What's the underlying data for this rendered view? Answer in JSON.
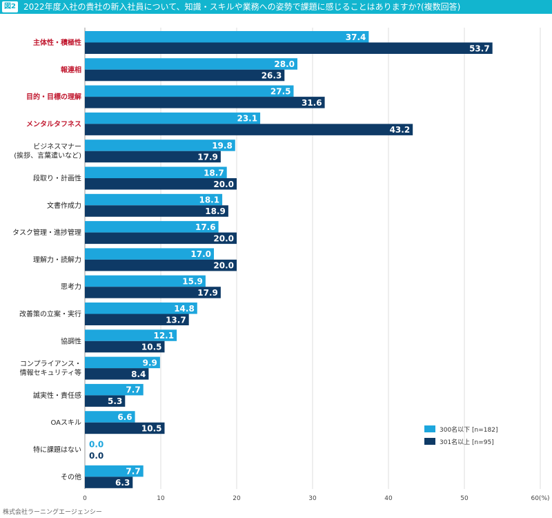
{
  "header": {
    "figure_label": "図2",
    "title": "2022年度入社の貴社の新入社員について、知識・スキルや業務への姿勢で課題に感じることはありますか?(複数回答)"
  },
  "source": "株式会社ラーニングエージェンシー",
  "colors": {
    "title_bar": "#12b5cf",
    "series_light": "#1da6dd",
    "series_dark": "#0e3a66",
    "highlight_label": "#c0172e",
    "normal_label": "#222222"
  },
  "chart_data": {
    "type": "bar",
    "orientation": "horizontal",
    "categories": [
      "主体性・積極性",
      "報連相",
      "目的・目標の理解",
      "メンタルタフネス",
      "ビジネスマナー\n(挨拶、言葉遣いなど)",
      "段取り・計画性",
      "文書作成力",
      "タスク管理・進捗管理",
      "理解力・読解力",
      "思考力",
      "改善策の立案・実行",
      "協調性",
      "コンプライアンス・\n情報セキュリティ等",
      "誠実性・責任感",
      "OAスキル",
      "特に課題はない",
      "その他"
    ],
    "highlighted_categories": [
      0,
      1,
      2,
      3
    ],
    "series": [
      {
        "name": "300名以下 [n=182]",
        "color": "#1da6dd",
        "values": [
          37.4,
          28.0,
          27.5,
          23.1,
          19.8,
          18.7,
          18.1,
          17.6,
          17.0,
          15.9,
          14.8,
          12.1,
          9.9,
          7.7,
          6.6,
          0.0,
          7.7
        ]
      },
      {
        "name": "301名以上 [n=95]",
        "color": "#0e3a66",
        "values": [
          53.7,
          26.3,
          31.6,
          43.2,
          17.9,
          20.0,
          18.9,
          20.0,
          20.0,
          17.9,
          13.7,
          10.5,
          8.4,
          5.3,
          10.5,
          0.0,
          6.3
        ]
      }
    ],
    "xlim": [
      0,
      60
    ],
    "xticks": [
      "0",
      "10",
      "20",
      "30",
      "40",
      "50",
      "60(%)"
    ],
    "grid": true,
    "legend_position": "bottom-right"
  }
}
